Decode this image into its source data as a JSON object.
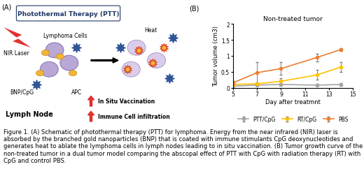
{
  "panel_a": {
    "label": "(A)",
    "title": "Photothermal Therapy (PTT)",
    "laser": "NIR Laser",
    "cells": "Lymphoma Cells",
    "heat": "Heat",
    "particles": "BNP/CpG",
    "apc": "APC",
    "site": "Lymph Node",
    "effects": [
      "In Situ Vaccination",
      "Immune Cell infiltration"
    ]
  },
  "panel_b_label": "(B)",
  "chart_data": {
    "type": "line",
    "title": "Non-treated tumor",
    "x_label": "Day after treatmnt",
    "y_label": "Tumor volume (cm3)",
    "x": [
      5,
      7,
      9,
      12,
      14
    ],
    "series": [
      {
        "name": "PTT/CpG",
        "color": "#A5A5A5",
        "marker": "circle",
        "values": [
          0.05,
          0.08,
          0.1,
          0.08,
          0.1
        ],
        "errors": [
          0.02,
          0.03,
          0.05,
          0.03,
          0.05
        ]
      },
      {
        "name": "RT/CpG",
        "color": "#FFC000",
        "marker": "circle",
        "values": [
          0.1,
          0.12,
          0.2,
          0.4,
          0.65
        ],
        "errors": [
          0.03,
          0.05,
          0.1,
          0.15,
          0.15
        ]
      },
      {
        "name": "PBS",
        "color": "#ED7D31",
        "marker": "circle",
        "values": [
          0.15,
          0.47,
          0.6,
          0.95,
          1.2
        ],
        "errors": [
          0.05,
          0.33,
          0.2,
          0.12,
          0.05
        ]
      }
    ],
    "xlim": [
      5,
      15
    ],
    "xticks": [
      5,
      7,
      9,
      11,
      13,
      15
    ],
    "ylim": [
      0,
      2
    ],
    "yticks": [
      0,
      0.5,
      1,
      1.5,
      2
    ],
    "grid": false,
    "legend": "lower center"
  },
  "caption": "Figure 1. (A) Schematic of photothermal therapy (PTT) for lymphoma. Energy from the near infrared (NIR) laser is absorbed by the branched gold nanoparticles (BNP) that is coated with immune stimulants CpG deoxynucleotides and generates heat to ablate the lymphoma cells in lymph nodes leading to in situ vaccination. (B) Tumor growth curve of the non-treated tumor in a dual tumor model comparing the abscopal effect of PTT with CpG with radiation therapy (RT) with CpG and control PBS."
}
